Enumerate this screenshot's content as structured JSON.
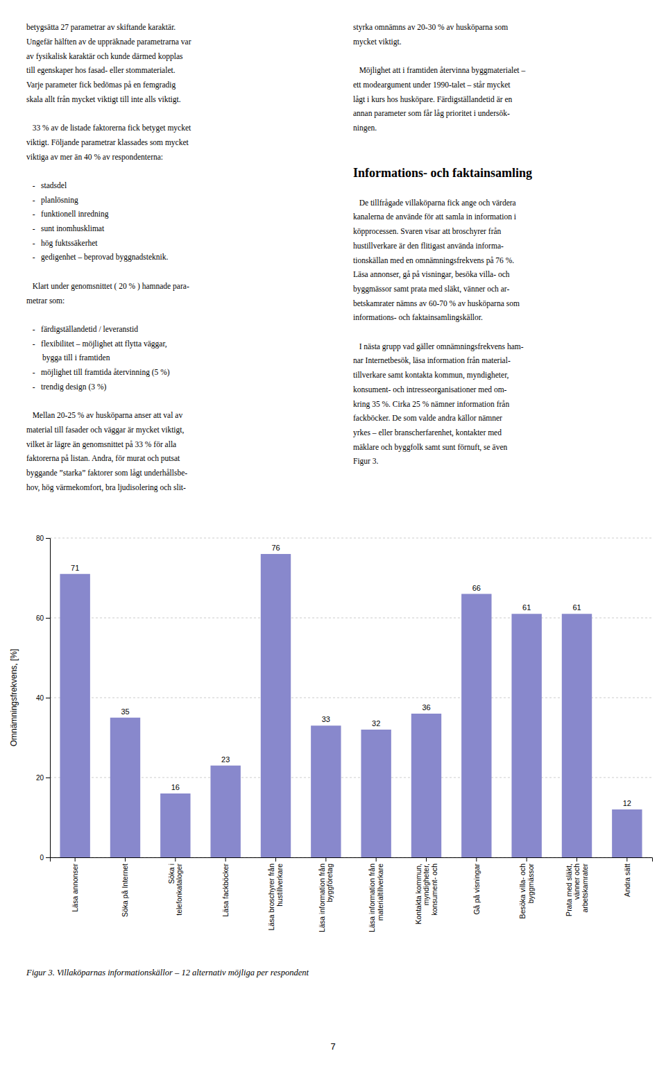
{
  "left_column": [
    [
      "betygsätta 27 parametrar av skiftande karaktär.",
      "Ungefär hälften av de uppräknade parametrarna var",
      "av fysikalisk karaktär och kunde därmed kopplas",
      "till egenskaper hos fasad- eller stommaterialet.",
      "Varje parameter fick bedömas på en femgradig",
      "skala allt från mycket viktigt till inte alls viktigt."
    ],
    [
      "   33 % av de listade faktorerna fick betyget mycket",
      "viktigt. Följande parametrar klassades som mycket",
      "viktiga av mer än 40 % av respondenterna:"
    ],
    [
      "   -   stadsdel",
      "   -   planlösning",
      "   -   funktionell inredning",
      "   -   sunt inomhusklimat",
      "   -   hög fukts­säkerhet",
      "   -   gedigenhet – beprovad byggnadsteknik."
    ],
    [
      "   Klart under genomsnittet ( 20 % ) hamnade para-",
      "metrar som:"
    ],
    [
      "   -   färdigställandetid / leveranstid",
      "   -   flexibilitet – möjlighet att flytta väggar,",
      "        bygga till i framtiden",
      "   -   möjlighet till framtida återvinning (5 %)",
      "   -   trendig design (3 %)"
    ],
    [
      "   Mellan 20-25 % av huskö­parna anser att val av",
      "material till fasader och väggar är mycket viktigt,",
      "vilket är lägre än genomsnittet på 33 % för alla",
      "faktorerna på listan. Andra, för murat och putsat",
      "byggande ”starka” faktorer som lågt underhållsbe-",
      "hov, hög värmekomfort, bra ljudisolering och slit-"
    ]
  ],
  "right_column_top": [
    [
      "styrka omnämns av 20-30 % av husköparna som",
      "mycket viktigt."
    ],
    [
      "   Möjlighet att i framtiden återvinna byggmaterialet –",
      "ett modeargument under 1990-talet – står mycket",
      "lågt i kurs hos husköpare. Färdigställandetid är en",
      "annan parameter som får låg prioritet i undersök-",
      "ningen."
    ]
  ],
  "right_heading": "Informations- och faktainsamling",
  "right_column_bottom": [
    [
      "   De tillfrågade villaköparna fick ange och värdera",
      "kanalerna de använde för att samla in information i",
      "köpprocessen. Svaren visar att broschyrer från",
      "hustillverkare är den flitigast använda informa-",
      "tionskällan med en omnämningsfrekvens på 76 %.",
      "Läsa annonser, gå på visningar, besöka villa- och",
      "byggmässor samt prata med släkt, vänner och ar-",
      "betskamrater nämns av 60-70 % av husköparna som",
      "informations- och faktainsamlingskällor."
    ],
    [
      "   I nästa grupp vad gäller omnämningsfrekvens ham-",
      "nar Internetbesök, läsa information från material-",
      "tillverkare samt kontakta kommun, myndigheter,",
      "konsument- och intresseorganisationer med om-",
      "kring 35 %. Cirka 25 % nämner information från",
      "fackböcker. De som valde andra källor nämner",
      "yrkes – eller branscherfarenhet, kontakter med",
      "mäklare och byggfolk samt sunt förnuft, se även",
      "Figur 3."
    ]
  ],
  "page_number": "7",
  "chart_data": {
    "type": "bar",
    "title": "Figur 3. Villaköparnas informationskällor – 12 alternativ möjliga per respondent",
    "categories": [
      "Läsa annonser",
      "Söka på Internet",
      "Söka i\ntelefonkataloger",
      "Läsa fackböcker",
      "Läsa broschyrer från\nhustillverkare",
      "Läsa information från\nbyggföretag",
      "Läsa information från\nmaterialtillverkare",
      "Kontakta kommun,\nmyndigheter,\nkonsument- och",
      "Gå på visningar",
      "Besöka villa- och\nbyggmässor",
      "Prata med släkt,\nvänner och\narbetskamrater",
      "Andra sätt"
    ],
    "values": [
      71,
      35,
      16,
      23,
      76,
      33,
      32,
      36,
      66,
      61,
      61,
      12
    ],
    "color": "#8888cc",
    "y_label": "Omnämningsfrekvens, [%]",
    "ylim": [
      0,
      80
    ],
    "yticks": [
      0,
      20,
      40,
      60,
      80
    ],
    "grid": true,
    "data_labels": true
  }
}
